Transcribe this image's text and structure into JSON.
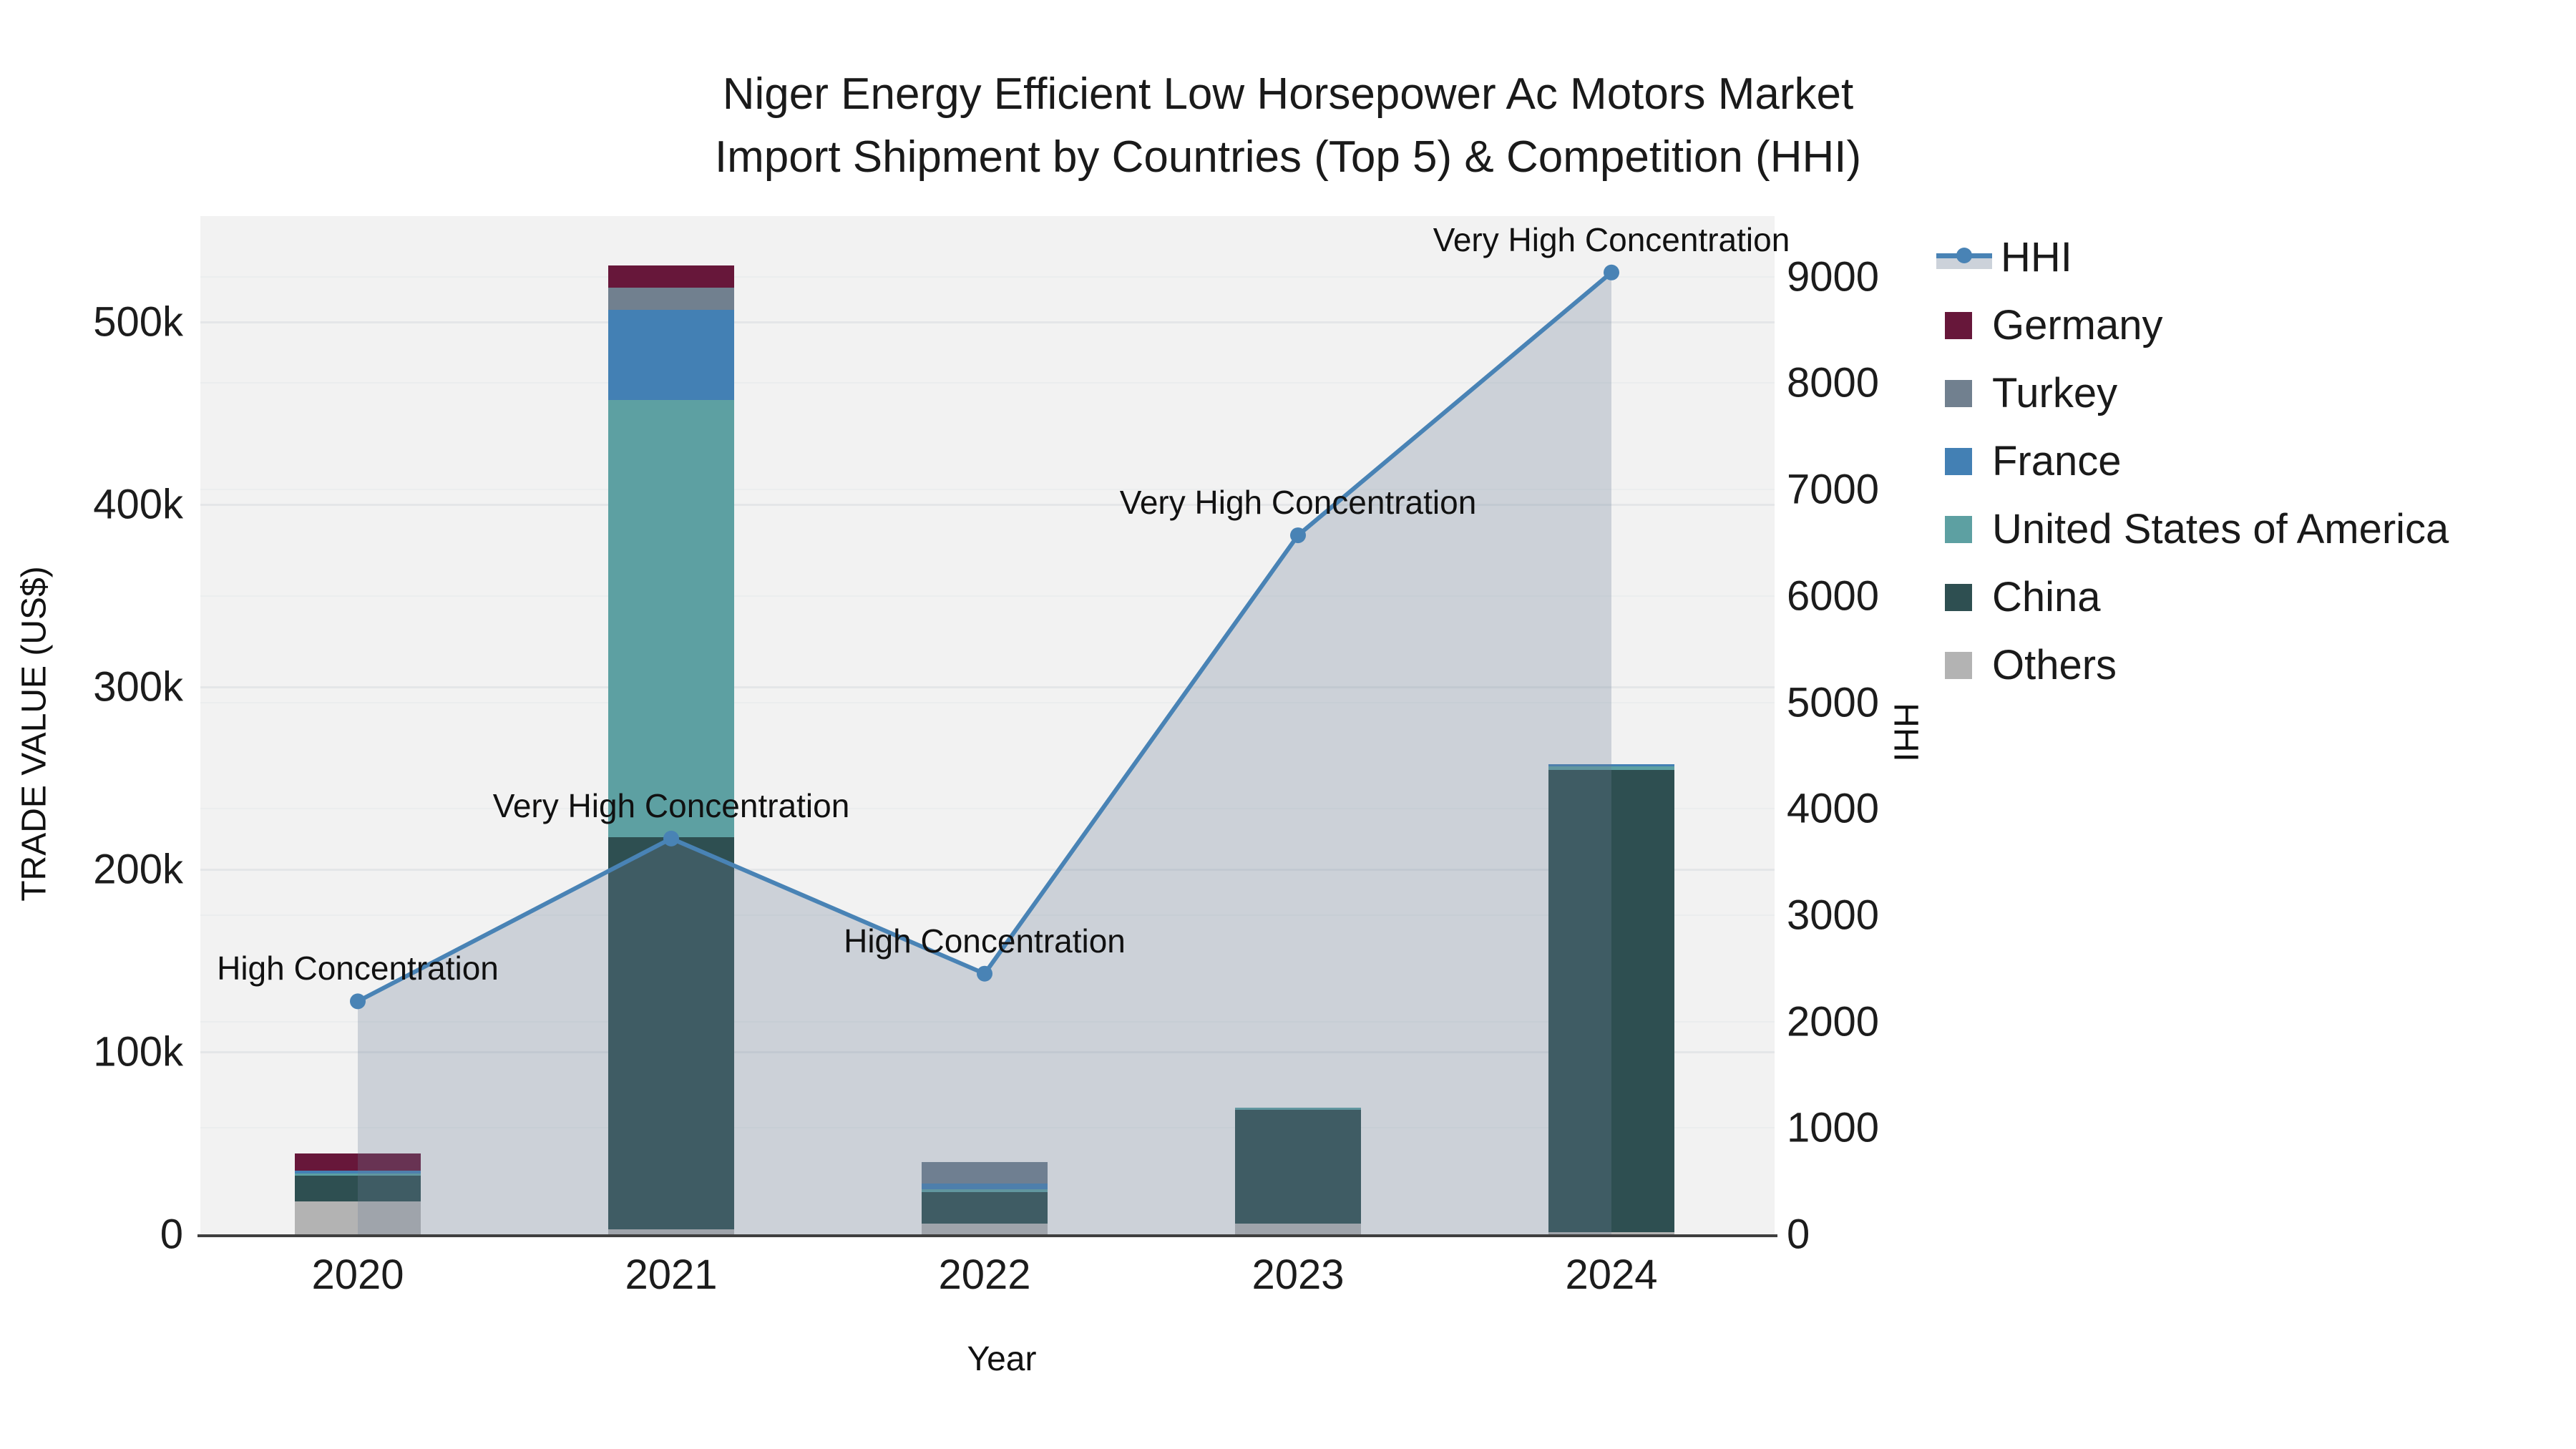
{
  "title": {
    "line1": "Niger Energy Efficient Low Horsepower Ac Motors Market",
    "line2": "Import Shipment by Countries (Top 5) & Competition (HHI)"
  },
  "axes": {
    "x": {
      "label": "Year"
    },
    "y1": {
      "label": "TRADE VALUE (US$)",
      "ticks": [
        {
          "value": 0,
          "label": "0"
        },
        {
          "value": 100000,
          "label": "100k"
        },
        {
          "value": 200000,
          "label": "200k"
        },
        {
          "value": 300000,
          "label": "300k"
        },
        {
          "value": 400000,
          "label": "400k"
        },
        {
          "value": 500000,
          "label": "500k"
        }
      ]
    },
    "y2": {
      "label": "HHI",
      "ticks": [
        {
          "value": 0,
          "label": "0"
        },
        {
          "value": 1000,
          "label": "1000"
        },
        {
          "value": 2000,
          "label": "2000"
        },
        {
          "value": 3000,
          "label": "3000"
        },
        {
          "value": 4000,
          "label": "4000"
        },
        {
          "value": 5000,
          "label": "5000"
        },
        {
          "value": 6000,
          "label": "6000"
        },
        {
          "value": 7000,
          "label": "7000"
        },
        {
          "value": 8000,
          "label": "8000"
        },
        {
          "value": 9000,
          "label": "9000"
        }
      ]
    }
  },
  "chart_data": {
    "type": "combo-stacked-bar-line",
    "title": "Niger Energy Efficient Low Horsepower Ac Motors Market Import Shipment by Countries (Top 5) & Competition (HHI)",
    "xlabel": "Year",
    "ylabel": "TRADE VALUE (US$)",
    "y2label": "HHI",
    "categories": [
      "2020",
      "2021",
      "2022",
      "2023",
      "2024"
    ],
    "y1_range": [
      0,
      558000
    ],
    "y2_range": [
      0,
      9570
    ],
    "grid": true,
    "legend_position": "right",
    "stack_order_bottom_to_top": [
      "Others",
      "China",
      "United States of America",
      "France",
      "Turkey",
      "Germany"
    ],
    "series": [
      {
        "name": "Germany",
        "color": "#67173a",
        "values": [
          9600,
          12500,
          0,
          0,
          0
        ]
      },
      {
        "name": "Turkey",
        "color": "#71808f",
        "values": [
          0,
          12000,
          11800,
          0,
          0
        ]
      },
      {
        "name": "France",
        "color": "#4380b4",
        "values": [
          1300,
          49400,
          2900,
          0,
          1300
        ]
      },
      {
        "name": "United States of America",
        "color": "#5da0a2",
        "values": [
          1300,
          239500,
          1700,
          1000,
          1900
        ]
      },
      {
        "name": "China",
        "color": "#2e4f51",
        "values": [
          14200,
          215000,
          17200,
          62300,
          253400
        ]
      },
      {
        "name": "Others",
        "color": "#b3b3b3",
        "values": [
          18000,
          2700,
          5900,
          6000,
          1000
        ]
      }
    ],
    "line": {
      "name": "HHI",
      "color": "#4983b5",
      "fill_color": "rgba(108,125,150,0.28)",
      "values": [
        2190,
        3720,
        2450,
        6570,
        9040
      ],
      "annotations": [
        "High Concentration",
        "Very High Concentration",
        "High Concentration",
        "Very High Concentration",
        "Very High Concentration"
      ]
    },
    "plot_bg": "#f2f2f2",
    "axis_line_color": "#3f3f3f"
  }
}
